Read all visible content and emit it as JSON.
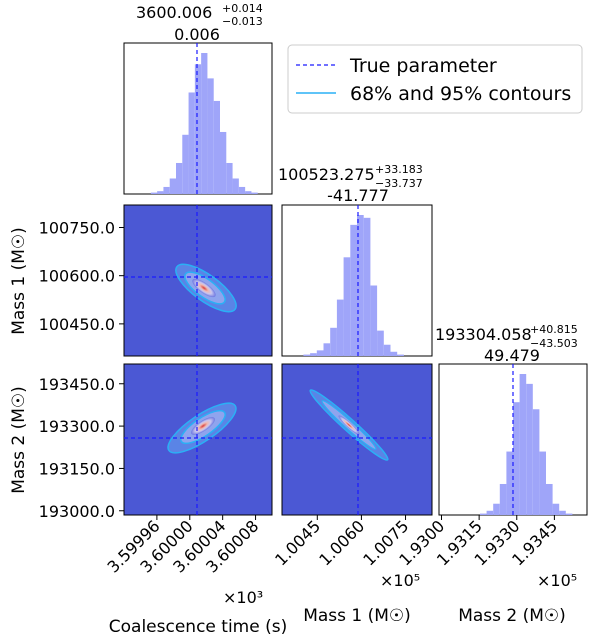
{
  "chart_data": {
    "type": "corner",
    "parameters": [
      {
        "key": "tc",
        "axis_label": "Coalescence time (s)",
        "title_median": "3600.006",
        "title_plus": "+0.014",
        "title_minus": "−0.013",
        "title_offset": "0.006",
        "true_value": 3600.0,
        "range": [
          3.59992,
          3.6001
        ],
        "ticks": [
          3.59996,
          3.6,
          3.60004,
          3.60008
        ],
        "tick_labels": [
          "3.59996",
          "3.60000",
          "3.60004",
          "3.60008"
        ],
        "scale_label": "×10³",
        "hist_bins": [
          0,
          0,
          0,
          0.01,
          0.02,
          0.05,
          0.11,
          0.22,
          0.42,
          0.72,
          0.92,
          1.0,
          0.82,
          0.66,
          0.44,
          0.22,
          0.11,
          0.05,
          0.02,
          0.01,
          0
        ]
      },
      {
        "key": "m1",
        "axis_label": "Mass 1 (M☉)",
        "title_median": "100523.275",
        "title_plus": "+33.183",
        "title_minus": "−33.737",
        "title_offset": "-41.777",
        "true_value": 100565.052,
        "range": [
          1.0033,
          1.0084
        ],
        "ticks": [
          1.0045,
          1.006,
          1.0075
        ],
        "tick_labels": [
          "1.0045",
          "1.0060",
          "1.0075"
        ],
        "y_ticks": [
          100450,
          100600,
          100750
        ],
        "y_tick_labels": [
          "100450.0",
          "100600.0",
          "100750.0"
        ],
        "scale_label": "×10⁵",
        "hist_bins": [
          0,
          0,
          0.01,
          0.02,
          0.04,
          0.09,
          0.2,
          0.4,
          0.7,
          0.93,
          1.0,
          0.98,
          0.5,
          0.18,
          0.08,
          0.03,
          0.01,
          0,
          0,
          0
        ]
      },
      {
        "key": "m2",
        "axis_label": "Mass 2 (M☉)",
        "title_median": "193304.058",
        "title_plus": "+40.815",
        "title_minus": "−43.503",
        "title_offset": "49.479",
        "true_value": 193254.579,
        "range": [
          1.9299,
          1.9358
        ],
        "ticks": [
          1.93,
          1.9315,
          1.933,
          1.9345
        ],
        "tick_labels": [
          "1.9300",
          "1.9315",
          "1.9330",
          "1.9345"
        ],
        "y_ticks": [
          193000,
          193150,
          193300,
          193450
        ],
        "y_tick_labels": [
          "193000.0",
          "193150.0",
          "193300.0",
          "193450.0"
        ],
        "scale_label": "×10⁵",
        "hist_bins": [
          0,
          0,
          0,
          0,
          0,
          0.01,
          0.03,
          0.08,
          0.22,
          0.45,
          0.8,
          1.0,
          0.93,
          0.75,
          0.45,
          0.22,
          0.08,
          0.03,
          0.01,
          0
        ]
      }
    ],
    "legend": [
      {
        "label": "True parameter",
        "style": "dashed",
        "color": "#1a1aff"
      },
      {
        "label": "68% and 95% contours",
        "style": "solid",
        "color": "#2ab0f5"
      }
    ],
    "legend_position": "top-right",
    "colors": {
      "hist_fill": "#9fa5f9",
      "truth_line": "#1a1aff",
      "density_background": "#4b58d4",
      "contour_line": "#2ab0f5",
      "density_peak": "#d93b3b"
    }
  }
}
